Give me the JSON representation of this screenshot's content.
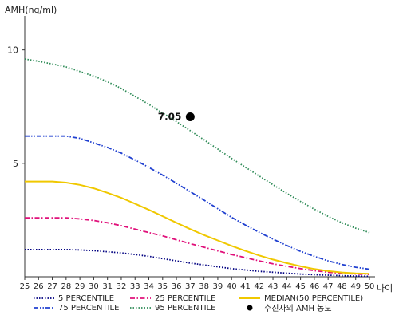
{
  "chart_data": {
    "type": "line",
    "ylabel": "AMH(ng/ml)",
    "xlabel": "나이",
    "x": [
      25,
      26,
      27,
      28,
      29,
      30,
      31,
      32,
      33,
      34,
      35,
      36,
      37,
      38,
      39,
      40,
      41,
      42,
      43,
      44,
      45,
      46,
      47,
      48,
      49,
      50
    ],
    "x_tick_labels": [
      "25",
      "26",
      "27",
      "28",
      "29",
      "30",
      "31",
      "32",
      "33",
      "34",
      "35",
      "36",
      "37",
      "38",
      "39",
      "40",
      "41",
      "42",
      "43",
      "44",
      "45",
      "46",
      "47",
      "48",
      "49",
      "50"
    ],
    "y_tick_labels": [
      "5",
      "10"
    ],
    "y_ticks": [
      5,
      10
    ],
    "xlim": [
      25,
      50
    ],
    "ylim": [
      0,
      11.5
    ],
    "grid": false,
    "legend_position": "bottom",
    "series": [
      {
        "name": "5 PERCENTILE",
        "color": "#000080",
        "style": "dotted",
        "values": [
          1.2,
          1.2,
          1.2,
          1.2,
          1.18,
          1.15,
          1.1,
          1.05,
          0.98,
          0.9,
          0.8,
          0.7,
          0.6,
          0.52,
          0.44,
          0.36,
          0.3,
          0.24,
          0.2,
          0.16,
          0.12,
          0.09,
          0.07,
          0.05,
          0.03,
          0.02
        ]
      },
      {
        "name": "25 PERCENTILE",
        "color": "#e0107a",
        "style": "dashdot",
        "values": [
          2.6,
          2.6,
          2.6,
          2.6,
          2.55,
          2.48,
          2.38,
          2.25,
          2.1,
          1.95,
          1.8,
          1.63,
          1.46,
          1.3,
          1.14,
          0.98,
          0.84,
          0.7,
          0.57,
          0.46,
          0.36,
          0.27,
          0.2,
          0.15,
          0.12,
          0.1
        ]
      },
      {
        "name": "MEDIAN(50 PERCENTILE)",
        "color": "#f0c800",
        "style": "solid",
        "values": [
          4.2,
          4.2,
          4.2,
          4.15,
          4.05,
          3.9,
          3.7,
          3.48,
          3.22,
          2.95,
          2.67,
          2.38,
          2.1,
          1.84,
          1.6,
          1.36,
          1.14,
          0.94,
          0.76,
          0.6,
          0.46,
          0.34,
          0.25,
          0.19,
          0.15,
          0.13
        ]
      },
      {
        "name": "75 PERCENTILE",
        "color": "#2040d0",
        "style": "dashdotdot",
        "values": [
          6.2,
          6.2,
          6.2,
          6.2,
          6.1,
          5.9,
          5.7,
          5.45,
          5.15,
          4.82,
          4.48,
          4.12,
          3.75,
          3.38,
          3.0,
          2.62,
          2.28,
          1.96,
          1.66,
          1.38,
          1.12,
          0.9,
          0.7,
          0.54,
          0.42,
          0.33
        ]
      },
      {
        "name": "95 PERCENTILE",
        "color": "#2e8b57",
        "style": "dotted",
        "values": [
          9.6,
          9.5,
          9.38,
          9.25,
          9.05,
          8.85,
          8.6,
          8.3,
          7.95,
          7.6,
          7.22,
          6.84,
          6.44,
          6.04,
          5.63,
          5.22,
          4.83,
          4.44,
          4.06,
          3.68,
          3.32,
          2.98,
          2.66,
          2.38,
          2.14,
          1.95
        ]
      }
    ],
    "marker": {
      "name": "수진자의 AMH 농도",
      "x": 37,
      "y": 7.05,
      "label": "7.05",
      "color": "#000000"
    }
  }
}
